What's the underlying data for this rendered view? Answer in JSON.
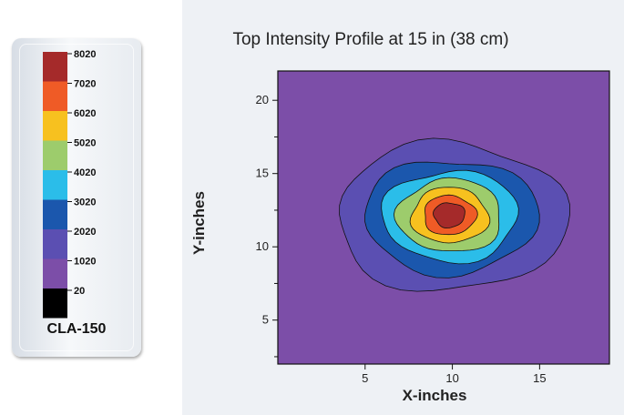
{
  "legend": {
    "model": "CLA-150",
    "entries": [
      {
        "label": "8020",
        "color": "#a52a2a"
      },
      {
        "label": "7020",
        "color": "#ef5b26"
      },
      {
        "label": "6020",
        "color": "#f7c11f"
      },
      {
        "label": "5020",
        "color": "#9dcc6c"
      },
      {
        "label": "4020",
        "color": "#2bbde9"
      },
      {
        "label": "3020",
        "color": "#1b57ad"
      },
      {
        "label": "2020",
        "color": "#5b4fb2"
      },
      {
        "label": "1020",
        "color": "#7c4ea8"
      },
      {
        "label": "20",
        "color": "#000000"
      }
    ]
  },
  "chart_data": {
    "type": "heatmap",
    "title": "Top Intensity Profile at 15 in (38 cm)",
    "xlabel": "X-inches",
    "ylabel": "Y-inches",
    "xlim": [
      0,
      19
    ],
    "ylim": [
      2,
      22
    ],
    "xticks": [
      "5",
      "10",
      "15"
    ],
    "yticks": [
      "5",
      "10",
      "15",
      "20"
    ],
    "grid": false,
    "background_color": "#7c4ea8",
    "peak_center": {
      "x": 9.8,
      "y": 12.2
    },
    "levels": [
      {
        "label": "1020",
        "color": "#7c4ea8",
        "rx": 12,
        "ry": 12
      },
      {
        "label": "2020",
        "color": "#5b4fb2",
        "rx": 6.6,
        "ry": 5.1
      },
      {
        "label": "3020",
        "color": "#1b57ad",
        "rx": 5.0,
        "ry": 3.9
      },
      {
        "label": "4020",
        "color": "#2bbde9",
        "rx": 3.9,
        "ry": 3.1
      },
      {
        "label": "5020",
        "color": "#9dcc6c",
        "rx": 3.0,
        "ry": 2.5
      },
      {
        "label": "6020",
        "color": "#f7c11f",
        "rx": 2.2,
        "ry": 1.9
      },
      {
        "label": "7020",
        "color": "#ef5b26",
        "rx": 1.5,
        "ry": 1.35
      },
      {
        "label": "8020",
        "color": "#a52a2a",
        "rx": 0.9,
        "ry": 0.85
      }
    ]
  }
}
